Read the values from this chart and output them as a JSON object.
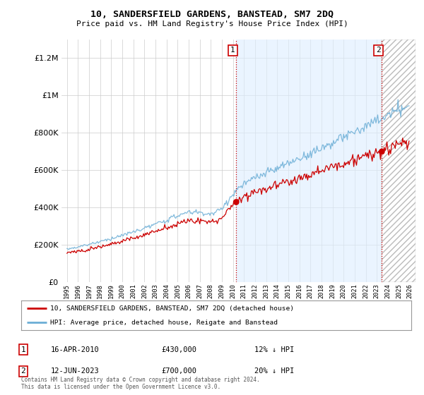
{
  "title": "10, SANDERSFIELD GARDENS, BANSTEAD, SM7 2DQ",
  "subtitle": "Price paid vs. HM Land Registry's House Price Index (HPI)",
  "legend_line1": "10, SANDERSFIELD GARDENS, BANSTEAD, SM7 2DQ (detached house)",
  "legend_line2": "HPI: Average price, detached house, Reigate and Banstead",
  "annotation1_date": "16-APR-2010",
  "annotation1_price": "£430,000",
  "annotation1_hpi": "12% ↓ HPI",
  "annotation2_date": "12-JUN-2023",
  "annotation2_price": "£700,000",
  "annotation2_hpi": "20% ↓ HPI",
  "footnote": "Contains HM Land Registry data © Crown copyright and database right 2024.\nThis data is licensed under the Open Government Licence v3.0.",
  "hpi_color": "#6baed6",
  "price_color": "#cc0000",
  "shade_color": "#ddeeff",
  "bg_color": "#ffffff",
  "grid_color": "#cccccc",
  "ylim": [
    0,
    1300000
  ],
  "yticks": [
    0,
    200000,
    400000,
    600000,
    800000,
    1000000,
    1200000
  ],
  "xstart_year": 1995,
  "xend_year": 2026,
  "sale1_year": 2010.29,
  "sale1_price": 430000,
  "sale2_year": 2023.45,
  "sale2_price": 700000,
  "fig_width": 6.0,
  "fig_height": 5.6,
  "dpi": 100
}
